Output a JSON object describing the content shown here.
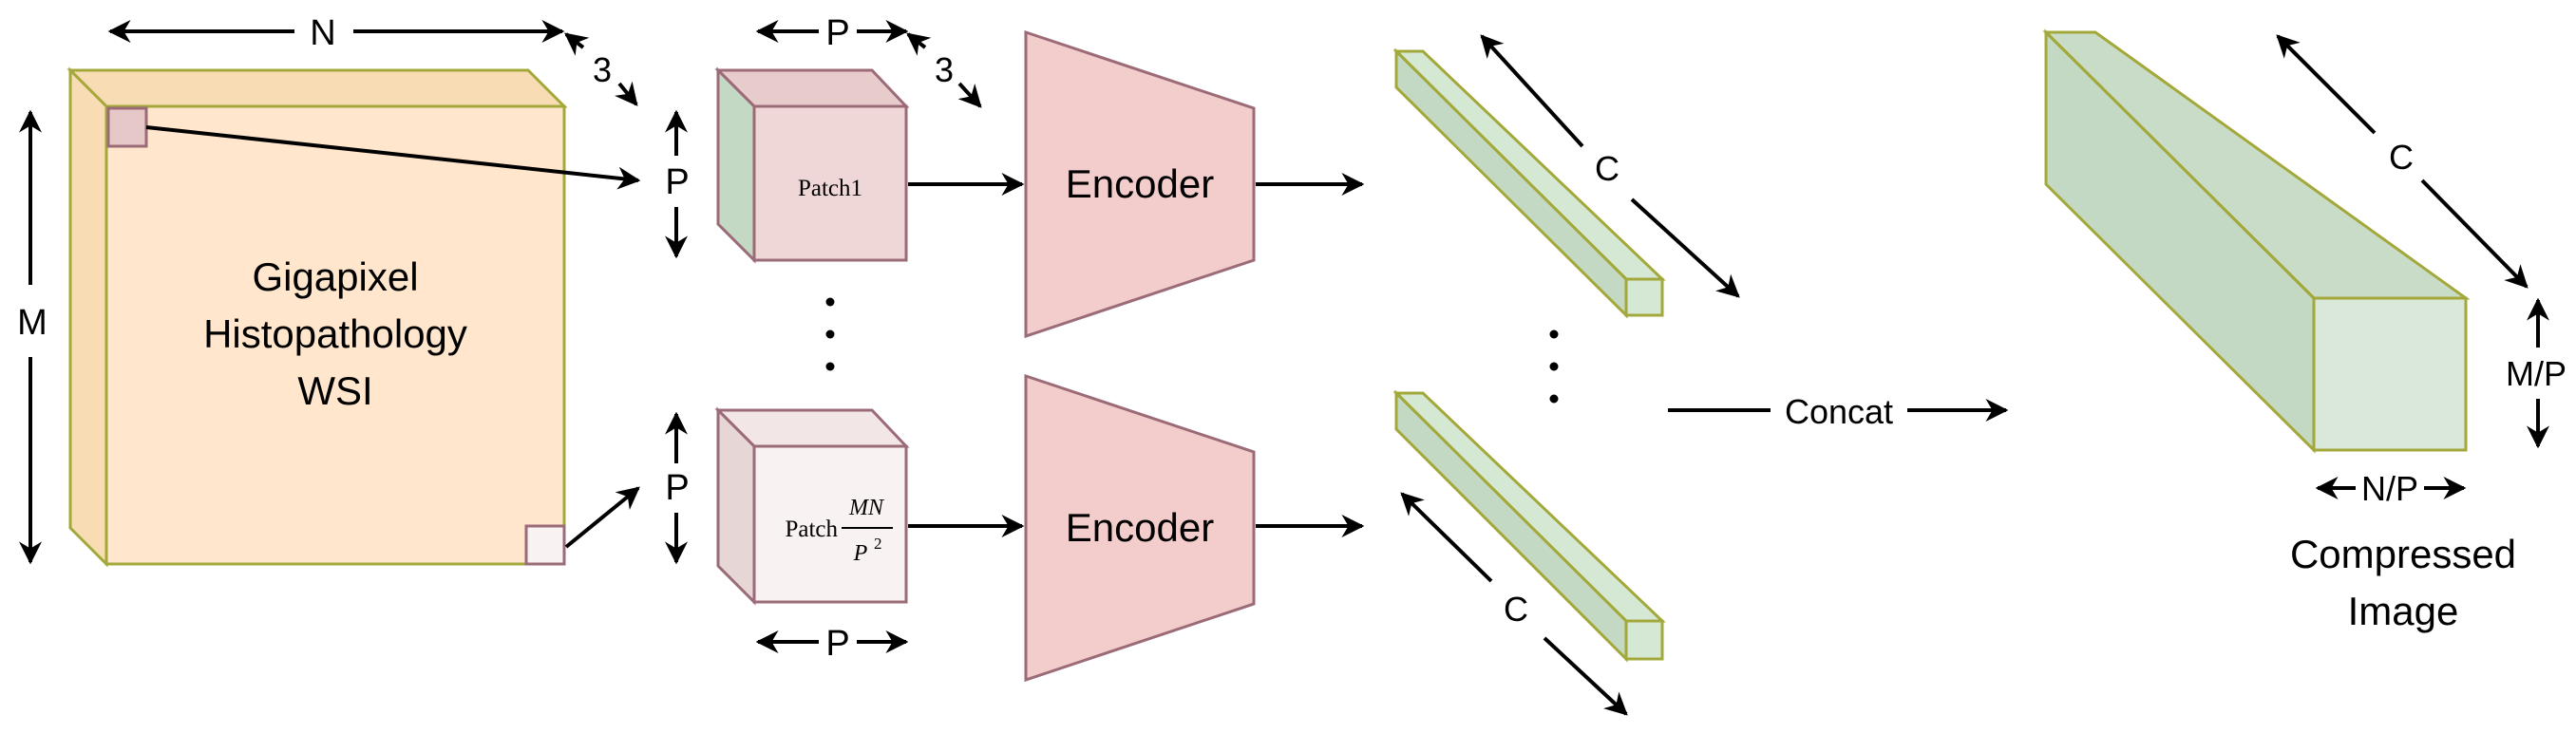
{
  "wsi": {
    "title_lines": [
      "Gigapixel",
      "Histopathology",
      "WSI"
    ],
    "dim_width": "N",
    "dim_height": "M",
    "dim_depth": "3"
  },
  "patches": {
    "top": {
      "label": "Patch1"
    },
    "bottom": {
      "label_prefix": "Patch",
      "frac_num": "MN",
      "frac_den": "P",
      "frac_exp": "2"
    },
    "dim_width": "P",
    "dim_height": "P",
    "dim_depth": "3"
  },
  "encoders": [
    {
      "label": "Encoder"
    },
    {
      "label": "Encoder"
    }
  ],
  "features": {
    "dim_length": "C"
  },
  "concat": {
    "label": "Concat"
  },
  "compressed": {
    "title_lines": [
      "Compressed",
      "Image"
    ],
    "dim_length": "C",
    "dim_height": "M/P",
    "dim_width": "N/P"
  },
  "colors": {
    "wsi_fill": "#ffe6cc",
    "olive_stroke": "#a3a83a",
    "green_fill": "#d5e8d4",
    "green_dark": "#c4d9c3",
    "patch_fill": "#f0d7d7",
    "patch2_fill": "#f8f2f2",
    "mauve_stroke": "#9b6b78",
    "encoder_fill": "#f3cccc"
  }
}
